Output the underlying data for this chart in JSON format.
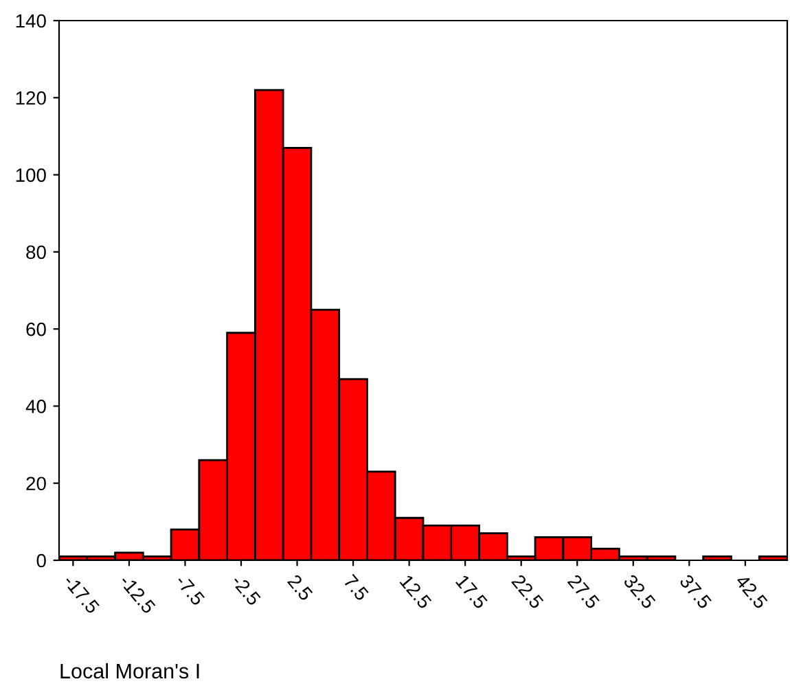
{
  "chart_data": {
    "type": "histogram",
    "xlabel": "Local Moran's I",
    "bins": [
      -18.75,
      -16.25,
      -13.75,
      -11.25,
      -8.75,
      -6.25,
      -3.75,
      -1.25,
      1.25,
      3.75,
      6.25,
      8.75,
      11.25,
      13.75,
      16.25,
      18.75,
      21.25,
      23.75,
      26.25,
      28.75,
      31.25,
      33.75,
      36.25,
      38.75,
      41.25,
      43.75,
      46.25
    ],
    "values": [
      1,
      1,
      2,
      1,
      8,
      26,
      59,
      122,
      107,
      65,
      47,
      23,
      11,
      9,
      9,
      7,
      1,
      6,
      6,
      3,
      1,
      1,
      0,
      1,
      0,
      1
    ],
    "color": "#ff0000",
    "xlim": [
      -18.75,
      46.25
    ],
    "xticks": [
      -17.5,
      -12.5,
      -7.5,
      -2.5,
      2.5,
      7.5,
      12.5,
      17.5,
      22.5,
      27.5,
      32.5,
      37.5,
      42.5
    ],
    "ylim": [
      0,
      140
    ],
    "yticks": [
      0,
      20,
      40,
      60,
      80,
      100,
      120,
      140
    ],
    "grid": false
  }
}
